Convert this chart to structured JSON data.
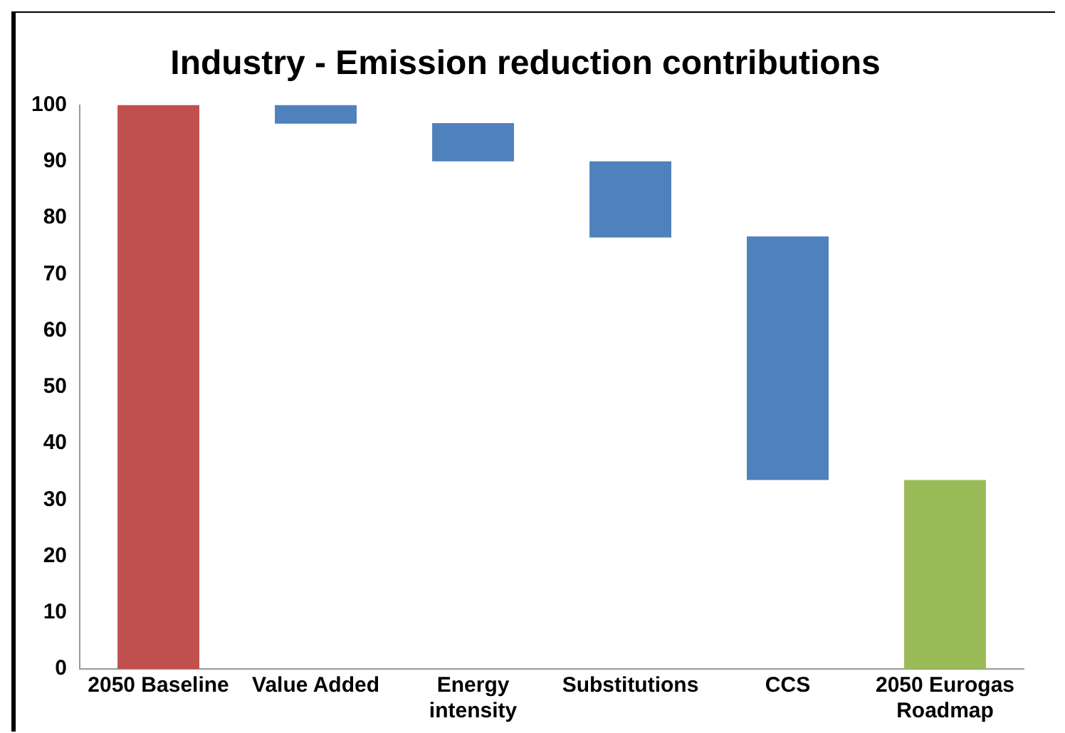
{
  "chart_data": {
    "type": "bar",
    "title": "Industry - Emission reduction contributions",
    "categories": [
      "2050 Baseline",
      "Value Added",
      "Energy intensity",
      "Substitutions",
      "CCS",
      "2050 Eurogas Roadmap"
    ],
    "values": [
      100,
      3.3,
      6.8,
      13.5,
      43.2,
      33.5
    ],
    "base": [
      0,
      96.7,
      90,
      76.5,
      33.5,
      0
    ],
    "colors": [
      "#c0504d",
      "#4f81bd",
      "#4f81bd",
      "#4f81bd",
      "#4f81bd",
      "#9bbb59"
    ],
    "ylim": [
      0,
      100
    ],
    "yticks": [
      0,
      10,
      20,
      30,
      40,
      50,
      60,
      70,
      80,
      90,
      100
    ],
    "grid": false,
    "legend": false
  }
}
